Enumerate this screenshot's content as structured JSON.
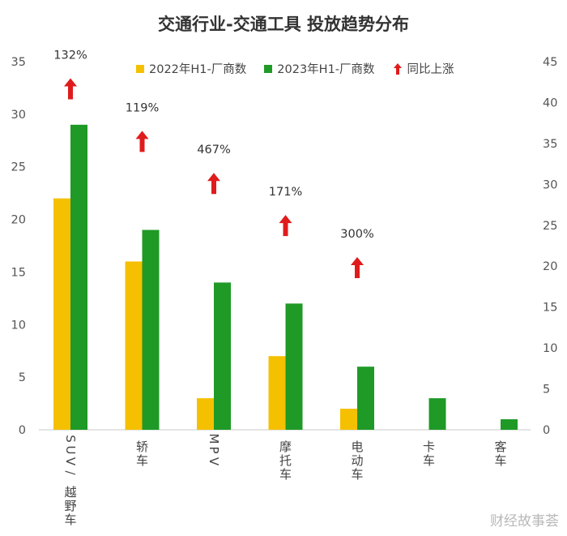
{
  "chart_data": {
    "type": "bar",
    "title": "交通行业-交通工具 投放趋势分布",
    "categories": [
      "SUV/越野车",
      "轿车",
      "MPV",
      "摩托车",
      "电动车",
      "卡车",
      "客车"
    ],
    "category_labels_vertical": [
      [
        "S",
        "U",
        "V",
        "/",
        "越",
        "野",
        "车"
      ],
      [
        "轿",
        "车"
      ],
      [
        "M",
        "P",
        "V"
      ],
      [
        "摩",
        "托",
        "车"
      ],
      [
        "电",
        "动",
        "车"
      ],
      [
        "卡",
        "车"
      ],
      [
        "客",
        "车"
      ]
    ],
    "series": [
      {
        "name": "2022年H1-厂商数",
        "color": "#f5c000",
        "values": [
          22,
          16,
          3,
          7,
          2,
          0,
          0
        ]
      },
      {
        "name": "2023年H1-厂商数",
        "color": "#1f9a26",
        "values": [
          29,
          19,
          14,
          12,
          6,
          3,
          1
        ]
      }
    ],
    "growth": {
      "name": "同比上涨",
      "color": "#e01b1b",
      "labels": [
        "132%",
        "119%",
        "467%",
        "171%",
        "300%",
        "",
        ""
      ],
      "positions": [
        34.5,
        29.5,
        25.5,
        21.5,
        17.5,
        null,
        null
      ]
    },
    "y_left": {
      "min": 0,
      "max": 35,
      "ticks": [
        0,
        5,
        10,
        15,
        20,
        25,
        30,
        35
      ]
    },
    "y_right": {
      "min": 0,
      "max": 45,
      "ticks": [
        0,
        5,
        10,
        15,
        20,
        25,
        30,
        35,
        40,
        45
      ]
    },
    "grid": false,
    "legend_position": "top"
  },
  "watermark": "财经故事荟"
}
